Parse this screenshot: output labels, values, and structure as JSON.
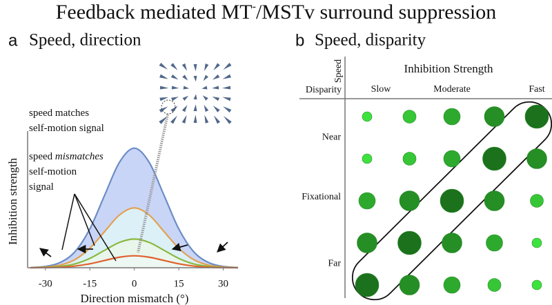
{
  "figure_title_parts": [
    "Feedback mediated MT",
    "-",
    "/MSTv surround suppression"
  ],
  "chart_data": [
    {
      "type": "line",
      "panel_label": "a",
      "title": "Speed, direction",
      "xlabel": "Direction mismatch (°)",
      "ylabel": "Inhibition strength",
      "x": [
        -35,
        -30,
        -25,
        -20,
        -15,
        -10,
        -5,
        0,
        5,
        10,
        15,
        20,
        25,
        30,
        35
      ],
      "xlim": [
        -36,
        35
      ],
      "ylim": [
        0,
        1.05
      ],
      "xticks": [
        -30,
        -15,
        0,
        15,
        30
      ],
      "series": [
        {
          "color": "#6b8cc6",
          "fill": "#c9d5f6",
          "values": [
            0.002,
            0.011,
            0.044,
            0.135,
            0.325,
            0.607,
            0.882,
            1,
            0.882,
            0.607,
            0.325,
            0.135,
            0.044,
            0.011,
            0.002
          ]
        },
        {
          "color": "#e3a04e",
          "fill": "#dcf0f8",
          "values": [
            0.001,
            0.006,
            0.022,
            0.068,
            0.163,
            0.303,
            0.441,
            0.5,
            0.441,
            0.303,
            0.163,
            0.068,
            0.022,
            0.006,
            0.001
          ]
        },
        {
          "color": "#8bb83e",
          "fill": "#e8f6ec",
          "values": [
            0,
            0.003,
            0.011,
            0.032,
            0.078,
            0.146,
            0.212,
            0.24,
            0.212,
            0.146,
            0.078,
            0.032,
            0.011,
            0.003,
            0
          ]
        },
        {
          "color": "#e0602e",
          "fill": "#eef8f2",
          "values": [
            0,
            0.001,
            0.004,
            0.014,
            0.033,
            0.061,
            0.088,
            0.1,
            0.088,
            0.061,
            0.033,
            0.014,
            0.004,
            0.001,
            0
          ]
        }
      ],
      "annotations": [
        [
          "speed matches"
        ],
        [
          "self-motion signal"
        ],
        [
          "speed ",
          "mismatches"
        ],
        [
          "self-motion"
        ],
        [
          "signal"
        ]
      ]
    },
    {
      "type": "bubble-grid",
      "panel_label": "b",
      "title": "Speed, disparity",
      "column_title": "Inhibition Strength",
      "speed_label": "Speed",
      "disparity_label": "Disparity",
      "columns": [
        "Slow",
        null,
        "Moderate",
        null,
        "Fast"
      ],
      "disparity_labels": [
        "Near",
        "Fixational",
        "Far"
      ],
      "color_low": "#3ee23e",
      "color_high": "#1c721c",
      "values": [
        [
          1,
          2,
          3,
          4,
          5
        ],
        [
          1,
          2,
          3,
          5,
          4
        ],
        [
          3,
          4,
          5,
          4,
          2
        ],
        [
          4,
          5,
          4,
          3,
          1
        ],
        [
          5,
          4,
          3,
          2,
          1
        ]
      ]
    }
  ]
}
